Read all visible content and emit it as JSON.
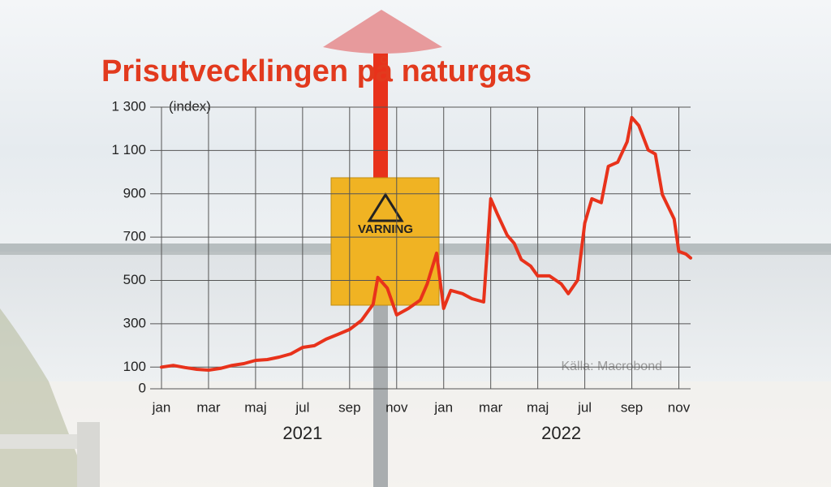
{
  "chart_data": {
    "type": "line",
    "title": "Prisutvecklingen på naturgas",
    "y_axis_label": "(index)",
    "source": "Källa: Macrobond",
    "x_group_labels": [
      {
        "value": 6,
        "label": "2021"
      },
      {
        "value": 17,
        "label": "2022"
      }
    ],
    "color": "#e8321b",
    "grid": true,
    "xlim": [
      0,
      22.5
    ],
    "xticks": [
      {
        "value": 0,
        "label": "jan"
      },
      {
        "value": 2,
        "label": "mar"
      },
      {
        "value": 4,
        "label": "maj"
      },
      {
        "value": 6,
        "label": "jul"
      },
      {
        "value": 8,
        "label": "sep"
      },
      {
        "value": 10,
        "label": "nov"
      },
      {
        "value": 12,
        "label": "jan"
      },
      {
        "value": 14,
        "label": "mar"
      },
      {
        "value": 16,
        "label": "maj"
      },
      {
        "value": 18,
        "label": "jul"
      },
      {
        "value": 20,
        "label": "sep"
      },
      {
        "value": 22,
        "label": "nov"
      }
    ],
    "ylim": [
      0,
      1300
    ],
    "yticks": [
      0,
      100,
      300,
      500,
      700,
      900,
      {
        "value": 1100,
        "label": "1 100"
      },
      {
        "value": 1300,
        "label": "1 300"
      }
    ],
    "x": [
      0,
      0.5,
      1,
      1.5,
      2,
      2.5,
      3,
      3.5,
      4,
      4.5,
      5,
      5.5,
      6,
      6.5,
      7,
      7.5,
      8,
      8.5,
      9,
      9.2,
      9.6,
      10,
      10.5,
      11,
      11.3,
      11.7,
      12,
      12.3,
      12.8,
      13.2,
      13.7,
      14,
      14.3,
      14.7,
      15,
      15.3,
      15.7,
      16,
      16.5,
      17,
      17.3,
      17.7,
      18,
      18.3,
      18.7,
      19,
      19.4,
      19.8,
      20,
      20.3,
      20.7,
      21,
      21.3,
      21.8,
      22,
      22.3,
      22.5
    ],
    "values": [
      100,
      108,
      98,
      90,
      86,
      94,
      108,
      116,
      131,
      135,
      146,
      161,
      191,
      199,
      229,
      251,
      274,
      315,
      390,
      514,
      465,
      341,
      371,
      409,
      484,
      626,
      371,
      454,
      439,
      416,
      401,
      877,
      802,
      709,
      671,
      596,
      566,
      521,
      521,
      484,
      439,
      502,
      765,
      877,
      859,
      1027,
      1046,
      1140,
      1252,
      1215,
      1102,
      1084,
      896,
      784,
      634,
      622,
      604
    ]
  }
}
